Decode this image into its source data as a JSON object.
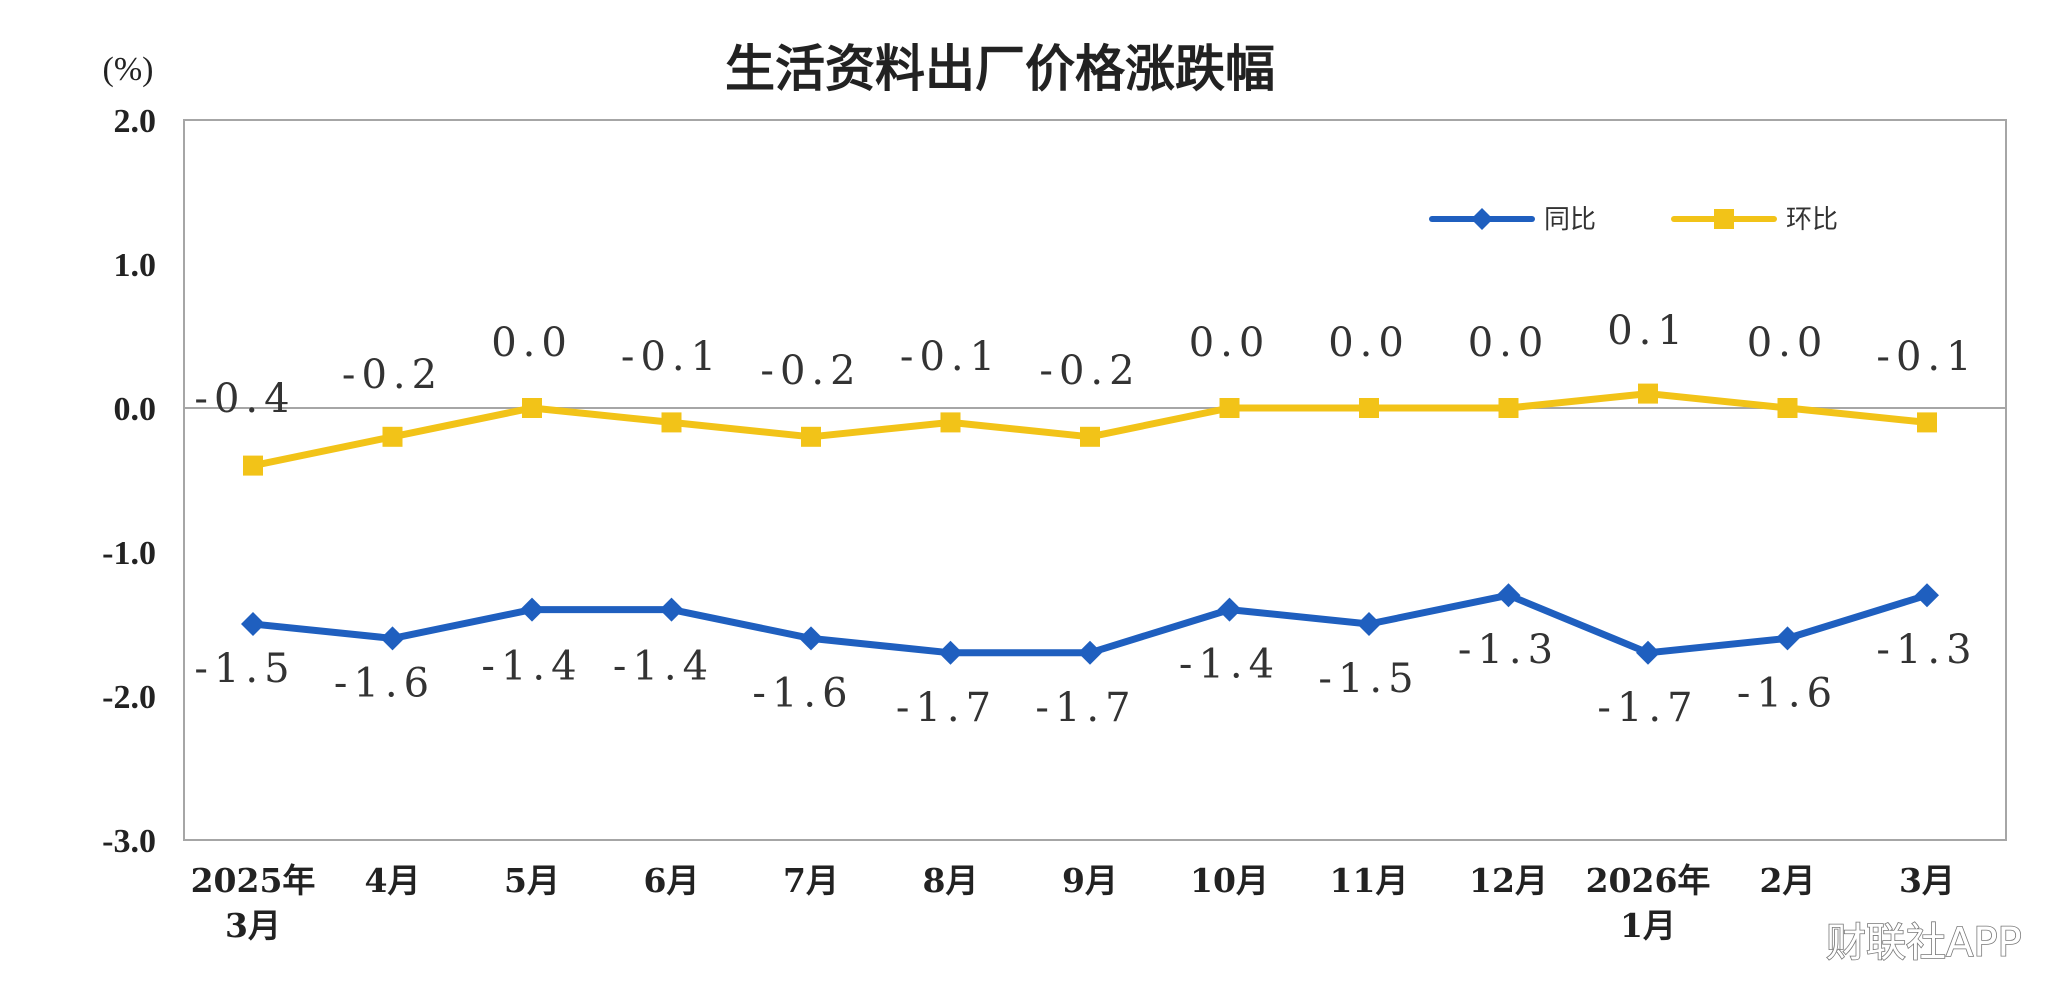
{
  "watermark": "财联社APP",
  "colors": {
    "yoy": "#1f5fbf",
    "mom": "#f2c318",
    "axis": "#a6a6a6"
  },
  "chart_data": {
    "type": "line",
    "title": "生活资料出厂价格涨跌幅",
    "unit_label": "(%)",
    "ylim": [
      -3.0,
      2.0
    ],
    "yticks": [
      "2.0",
      "1.0",
      "0.0",
      "-1.0",
      "-2.0",
      "-3.0"
    ],
    "ytick_values": [
      2.0,
      1.0,
      0.0,
      -1.0,
      -2.0,
      -3.0
    ],
    "categories": [
      [
        "2025年",
        "3月"
      ],
      [
        "4月"
      ],
      [
        "5月"
      ],
      [
        "6月"
      ],
      [
        "7月"
      ],
      [
        "8月"
      ],
      [
        "9月"
      ],
      [
        "10月"
      ],
      [
        "11月"
      ],
      [
        "12月"
      ],
      [
        "2026年",
        "1月"
      ],
      [
        "2月"
      ],
      [
        "3月"
      ]
    ],
    "legend_position": "top-right",
    "grid": false,
    "series": [
      {
        "name": "同比",
        "marker": "diamond",
        "values": [
          -1.5,
          -1.6,
          -1.4,
          -1.4,
          -1.6,
          -1.7,
          -1.7,
          -1.4,
          -1.5,
          -1.3,
          -1.7,
          -1.6,
          -1.3
        ],
        "labels": [
          "-1.5",
          "-1.6",
          "-1.4",
          "-1.4",
          "-1.6",
          "-1.7",
          "-1.7",
          "-1.4",
          "-1.5",
          "-1.3",
          "-1.7",
          "-1.6",
          "-1.3"
        ]
      },
      {
        "name": "环比",
        "marker": "square",
        "values": [
          -0.4,
          -0.2,
          0.0,
          -0.1,
          -0.2,
          -0.1,
          -0.2,
          0.0,
          0.0,
          0.0,
          0.1,
          0.0,
          -0.1
        ],
        "labels": [
          "-0.4",
          "-0.2",
          "0.0",
          "-0.1",
          "-0.2",
          "-0.1",
          "-0.2",
          "0.0",
          "0.0",
          "0.0",
          "0.1",
          "0.0",
          "-0.1"
        ]
      }
    ]
  }
}
